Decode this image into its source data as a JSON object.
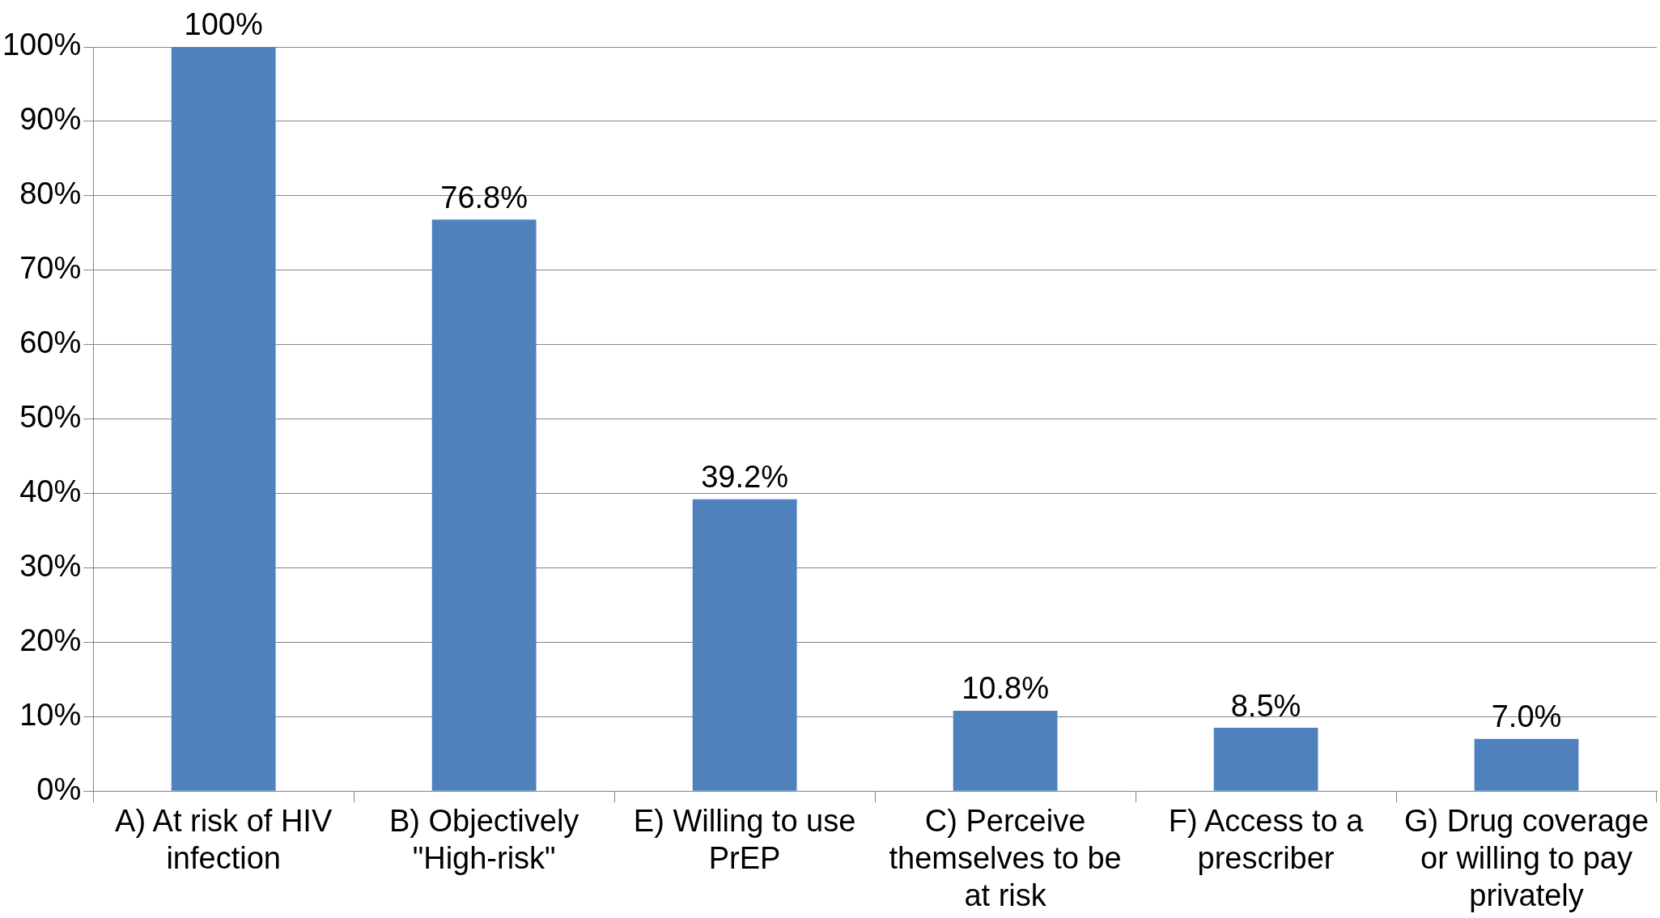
{
  "chart_data": {
    "type": "bar",
    "categories": [
      "A) At risk of HIV infection",
      "B) Objectively \"High-risk\"",
      "E) Willing to use PrEP",
      "C) Perceive themselves to be at risk",
      "F) Access to a prescriber",
      "G) Drug coverage or willing to pay privately"
    ],
    "values": [
      100,
      76.8,
      39.2,
      10.8,
      8.5,
      7.0
    ],
    "value_labels": [
      "100%",
      "76.8%",
      "39.2%",
      "10.8%",
      "8.5%",
      "7.0%"
    ],
    "color": "#4f81bd",
    "ylim": [
      0,
      100
    ],
    "yticks": [
      {
        "value": 0,
        "label": "0%"
      },
      {
        "value": 10,
        "label": "10%"
      },
      {
        "value": 20,
        "label": "20%"
      },
      {
        "value": 30,
        "label": "30%"
      },
      {
        "value": 40,
        "label": "40%"
      },
      {
        "value": 50,
        "label": "50%"
      },
      {
        "value": 60,
        "label": "60%"
      },
      {
        "value": 70,
        "label": "70%"
      },
      {
        "value": 80,
        "label": "80%"
      },
      {
        "value": 90,
        "label": "90%"
      },
      {
        "value": 100,
        "label": "100%"
      }
    ],
    "grid": "y",
    "legend": false
  }
}
